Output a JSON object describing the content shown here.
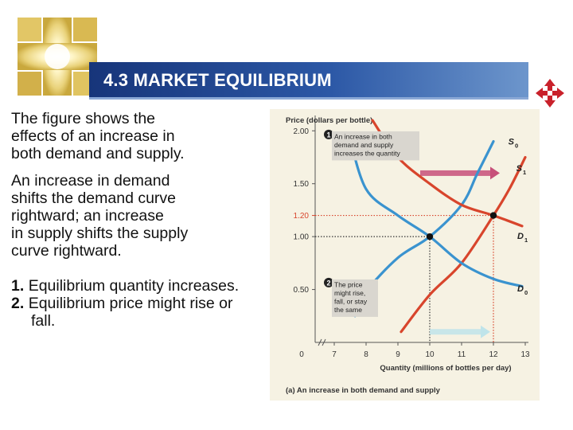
{
  "slide": {
    "title": "4.3 MARKET EQUILIBRIUM",
    "paragraphs": [
      "The figure shows the\neffects of an increase in\nboth demand and supply.",
      "An increase in demand\nshifts the demand curve\nrightward; an increase\nin supply shifts the supply\ncurve rightward."
    ],
    "list": [
      {
        "num": "1.",
        "text": "Equilibrium quantity increases."
      },
      {
        "num": "2.",
        "text": "Equilibrium price might rise or fall."
      }
    ]
  },
  "icons": {
    "logo": "glowing-cross-logo-icon",
    "move": "four-arrow-move-icon"
  },
  "colors": {
    "supply": "#d8452c",
    "demand": "#3a93cf",
    "arrow_shift": "#c7507a",
    "arrow_light": "#bfe4ea",
    "title_bar": "#1e3f8c"
  },
  "chart_data": {
    "type": "line",
    "ylabel": "Price (dollars per bottle)",
    "xlabel": "Quantity (millions of bottles per day)",
    "caption": "(a) An increase in both demand and supply",
    "xlim": [
      6.4,
      13.1
    ],
    "ylim": [
      0,
      2.1
    ],
    "x_ticks": [
      {
        "value": 7,
        "label": "7"
      },
      {
        "value": 8,
        "label": "8"
      },
      {
        "value": 9,
        "label": "9"
      },
      {
        "value": 10,
        "label": "10"
      },
      {
        "value": 11,
        "label": "11"
      },
      {
        "value": 12,
        "label": "12"
      },
      {
        "value": 13,
        "label": "13"
      }
    ],
    "origin_label": "0",
    "y_ticks": [
      {
        "value": 0.5,
        "label": "0.50"
      },
      {
        "value": 1.0,
        "label": "1.00"
      },
      {
        "value": 1.5,
        "label": "1.50"
      },
      {
        "value": 2.0,
        "label": "2.00"
      }
    ],
    "highlight_y_tick": {
      "value": 1.2,
      "label": "1.20",
      "color": "#d8452c"
    },
    "series": [
      {
        "name": "S0",
        "label": "S",
        "sub": "0",
        "color": "#3a93cf",
        "points": [
          [
            7.65,
            0.25
          ],
          [
            8.0,
            0.48
          ],
          [
            9.0,
            0.8
          ],
          [
            10.0,
            1.0
          ],
          [
            11.0,
            1.3
          ],
          [
            11.5,
            1.6
          ],
          [
            12.0,
            1.9
          ]
        ],
        "label_at": [
          12.8,
          1.87
        ]
      },
      {
        "name": "S1",
        "label": "S",
        "sub": "1",
        "color": "#d8452c",
        "points": [
          [
            9.1,
            0.1
          ],
          [
            10.0,
            0.45
          ],
          [
            11.0,
            0.75
          ],
          [
            12.0,
            1.2
          ],
          [
            12.5,
            1.45
          ],
          [
            13.0,
            1.75
          ]
        ],
        "label_at": [
          13.05,
          1.62
        ]
      },
      {
        "name": "D0",
        "label": "D",
        "sub": "0",
        "color": "#3a93cf",
        "points": [
          [
            7.45,
            1.98
          ],
          [
            8.0,
            1.45
          ],
          [
            9.0,
            1.2
          ],
          [
            10.0,
            1.0
          ],
          [
            11.0,
            0.75
          ],
          [
            12.0,
            0.6
          ],
          [
            12.9,
            0.53
          ]
        ],
        "label_at": [
          13.1,
          0.48
        ]
      },
      {
        "name": "D1",
        "label": "D",
        "sub": "1",
        "color": "#d8452c",
        "points": [
          [
            8.2,
            2.1
          ],
          [
            9.0,
            1.75
          ],
          [
            10.0,
            1.5
          ],
          [
            11.0,
            1.3
          ],
          [
            12.0,
            1.2
          ],
          [
            12.9,
            1.1
          ]
        ],
        "label_at": [
          13.1,
          0.98
        ]
      }
    ],
    "equilibria": [
      {
        "x": 10,
        "y": 1.0
      },
      {
        "x": 12,
        "y": 1.2
      }
    ],
    "reference_lines": [
      {
        "y": 1.0,
        "x_end": 10,
        "color": "#333333"
      },
      {
        "y": 1.2,
        "x_end": 12,
        "color": "#d8452c"
      },
      {
        "x": 10,
        "y_end": 1.0,
        "color": "#333333"
      },
      {
        "x": 12,
        "y_end": 1.2,
        "color": "#d8452c"
      }
    ],
    "shift_arrows": [
      {
        "from": [
          9.7,
          1.6
        ],
        "to": [
          12.2,
          1.6
        ],
        "color": "#c7507a"
      },
      {
        "from": [
          10.0,
          0.1
        ],
        "to": [
          11.9,
          0.1
        ],
        "color": "#bfe4ea"
      }
    ],
    "annotations": [
      {
        "number": "1",
        "lines": [
          "An increase in both",
          "demand and supply",
          "increases the quantity"
        ],
        "at": [
          6.7,
          1.95
        ]
      },
      {
        "number": "2",
        "lines": [
          "The price",
          "might rise,",
          "fall, or stay",
          "the same"
        ],
        "at": [
          6.7,
          0.55
        ]
      }
    ]
  }
}
